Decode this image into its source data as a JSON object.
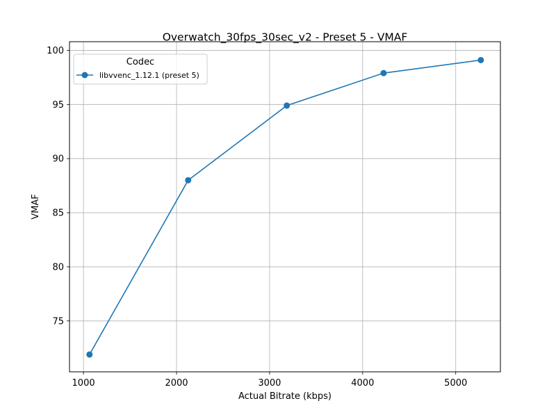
{
  "chart_data": {
    "type": "line",
    "title": "Overwatch_30fps_30sec_v2 - Preset 5 - VMAF",
    "xlabel": "Actual Bitrate (kbps)",
    "ylabel": "VMAF",
    "xlim": [
      850,
      5480
    ],
    "ylim": [
      70.3,
      100.8
    ],
    "xticks": [
      1000,
      2000,
      3000,
      4000,
      5000
    ],
    "yticks": [
      75,
      80,
      85,
      90,
      95,
      100
    ],
    "xtick_labels": [
      "1000",
      "2000",
      "3000",
      "4000",
      "5000"
    ],
    "ytick_labels": [
      "75",
      "80",
      "85",
      "90",
      "95",
      "100"
    ],
    "grid": true,
    "legend": {
      "title": "Codec",
      "placement": "top-left"
    },
    "series": [
      {
        "name": "libvvenc_1.12.1 (preset 5)",
        "color": "#1f77b4",
        "marker": "circle",
        "x": [
          1065,
          2125,
          3185,
          4225,
          5270
        ],
        "y": [
          71.9,
          88.0,
          94.9,
          97.9,
          99.1
        ]
      }
    ]
  }
}
